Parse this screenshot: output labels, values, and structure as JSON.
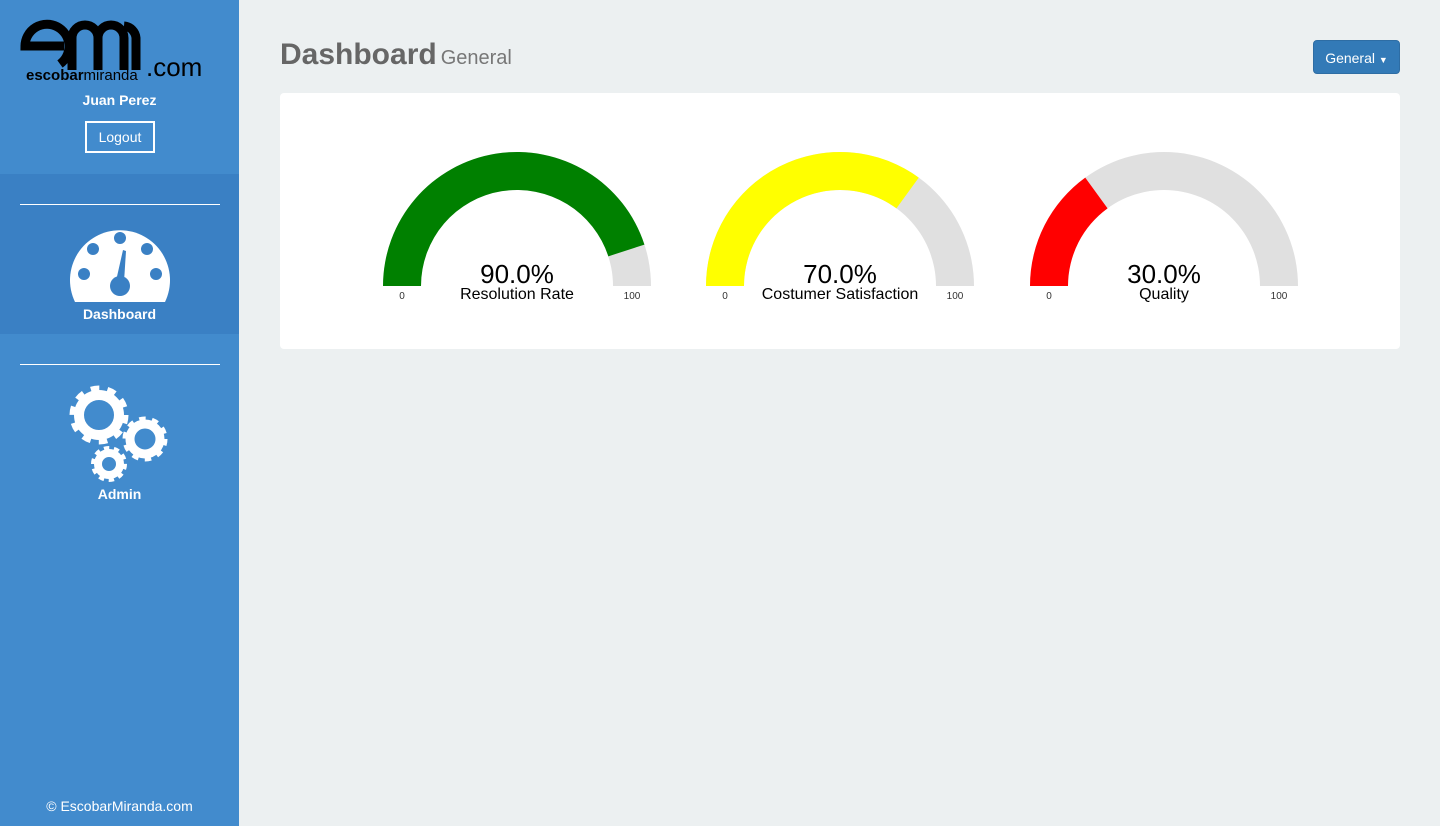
{
  "sidebar": {
    "logo_main": "escobar",
    "logo_sub": "miranda",
    "logo_domain": ".com",
    "user": "Juan Perez",
    "logout": "Logout",
    "nav": [
      {
        "label": "Dashboard"
      },
      {
        "label": "Admin"
      }
    ],
    "footer": "© EscobarMiranda.com"
  },
  "header": {
    "title": "Dashboard",
    "subtitle": "General",
    "dropdown": "General"
  },
  "chart_data": [
    {
      "type": "gauge",
      "title": "Resolution Rate",
      "value": 90,
      "value_label": "90.0%",
      "min": 0,
      "max": 100,
      "color": "#008000",
      "track_color": "#e0e0e0"
    },
    {
      "type": "gauge",
      "title": "Costumer Satisfaction",
      "value": 70,
      "value_label": "70.0%",
      "min": 0,
      "max": 100,
      "color": "#ffff00",
      "track_color": "#e0e0e0"
    },
    {
      "type": "gauge",
      "title": "Quality",
      "value": 30,
      "value_label": "30.0%",
      "min": 0,
      "max": 100,
      "color": "#ff0000",
      "track_color": "#e0e0e0"
    }
  ]
}
